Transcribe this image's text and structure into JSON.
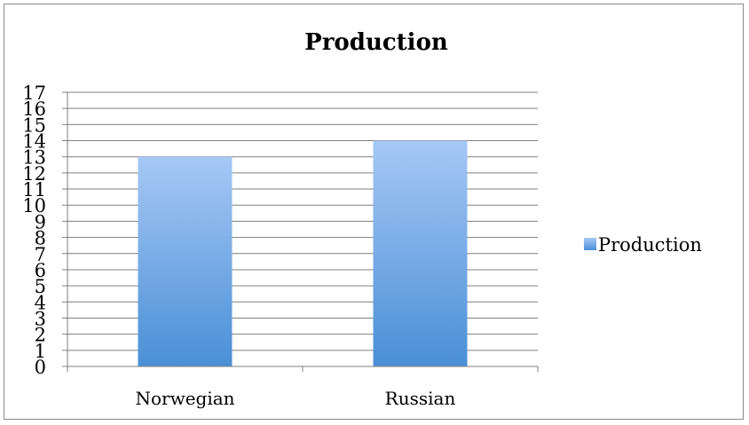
{
  "chart_data": {
    "type": "bar",
    "title": "Production",
    "xlabel": "",
    "ylabel": "",
    "categories": [
      "Norwegian",
      "Russian"
    ],
    "series": [
      {
        "name": "Production",
        "values": [
          13,
          14
        ]
      }
    ],
    "ylim": [
      0,
      17
    ],
    "yticks": [
      "0",
      "1",
      "2",
      "3",
      "4",
      "5",
      "6",
      "7",
      "8",
      "9",
      "10",
      "11",
      "12",
      "13",
      "14",
      "15",
      "16",
      "17"
    ],
    "grid": true,
    "legend": "right",
    "colors": {
      "bar_top": "#a6c8f5",
      "bar_bottom": "#4a8fd6",
      "grid": "#7f7f7f",
      "axis": "#7f7f7f"
    }
  }
}
